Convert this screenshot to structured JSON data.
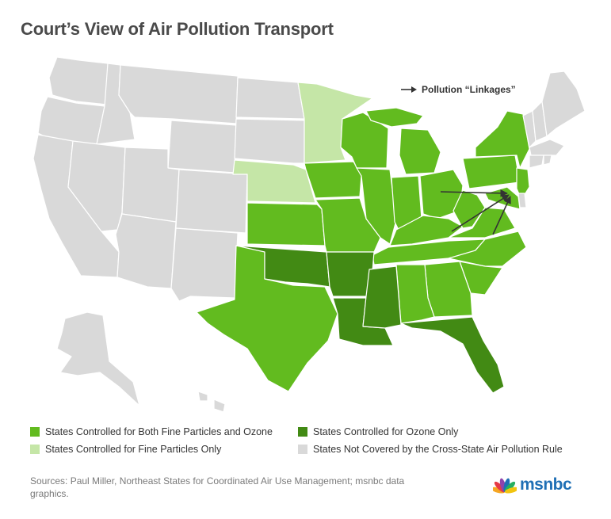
{
  "title": "Court’s View of Air Pollution Transport",
  "linkage_key": {
    "label": "Pollution “Linkages”",
    "icon": "arrow-right-icon"
  },
  "colors": {
    "both": "#62bb1f",
    "ozone": "#428a14",
    "fine": "#c5e6a7",
    "none": "#d9d9d9",
    "border": "#ffffff",
    "arrow": "#333333",
    "logo_blue": "#1f6fb5"
  },
  "legend": [
    {
      "key": "both",
      "label": "States Controlled for Both Fine Particles and Ozone"
    },
    {
      "key": "ozone",
      "label": "States Controlled for Ozone Only"
    },
    {
      "key": "fine",
      "label": "States Controlled for Fine Particles Only"
    },
    {
      "key": "none",
      "label": "States Not Covered by the Cross-State Air Pollution Rule"
    }
  ],
  "states": {
    "both": [
      "Kansas",
      "Texas",
      "Iowa",
      "Missouri",
      "Wisconsin",
      "Illinois",
      "Michigan",
      "Indiana",
      "Ohio",
      "Kentucky",
      "Tennessee",
      "Alabama",
      "Georgia",
      "South Carolina",
      "North Carolina",
      "Virginia",
      "West Virginia",
      "Pennsylvania",
      "New York",
      "New Jersey",
      "Maryland"
    ],
    "ozone": [
      "Oklahoma",
      "Arkansas",
      "Louisiana",
      "Mississippi",
      "Florida"
    ],
    "fine": [
      "Nebraska",
      "Minnesota"
    ],
    "none": [
      "Washington",
      "Oregon",
      "California",
      "Idaho",
      "Nevada",
      "Montana",
      "Wyoming",
      "Utah",
      "Arizona",
      "Colorado",
      "New Mexico",
      "North Dakota",
      "South Dakota",
      "Alaska",
      "Hawaii",
      "Maine",
      "Vermont",
      "New Hampshire",
      "Massachusetts",
      "Connecticut",
      "Rhode Island",
      "Delaware"
    ]
  },
  "sources": "Sources: Paul Miller, Northeast States for Coordinated Air Use Management; msnbc data graphics.",
  "logo": {
    "text": "msnbc",
    "icon": "peacock-icon"
  }
}
